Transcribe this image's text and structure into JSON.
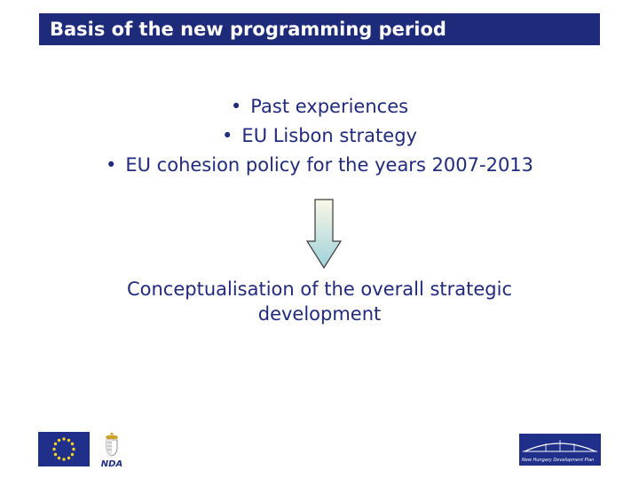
{
  "slide": {
    "title": "Basis of the new programming period",
    "bullets": [
      "Past experiences",
      "EU Lisbon strategy",
      "EU cohesion policy for the years 2007-2013"
    ],
    "bullet_symbol": "•",
    "conclusion_line1": "Conceptualisation of the overall strategic",
    "conclusion_line2": "development"
  },
  "logos": {
    "left_flag": "eu-flag",
    "nda_label": "NDA",
    "ndp_label": "New Hungary Development Plan"
  },
  "colors": {
    "title_bar": "#1e2a7a",
    "text": "#1f2a80",
    "arrow_top": "#fbf8e6",
    "arrow_bottom": "#9fd1dc",
    "eu_blue": "#1f2f8a",
    "eu_star": "#f6d21a"
  }
}
